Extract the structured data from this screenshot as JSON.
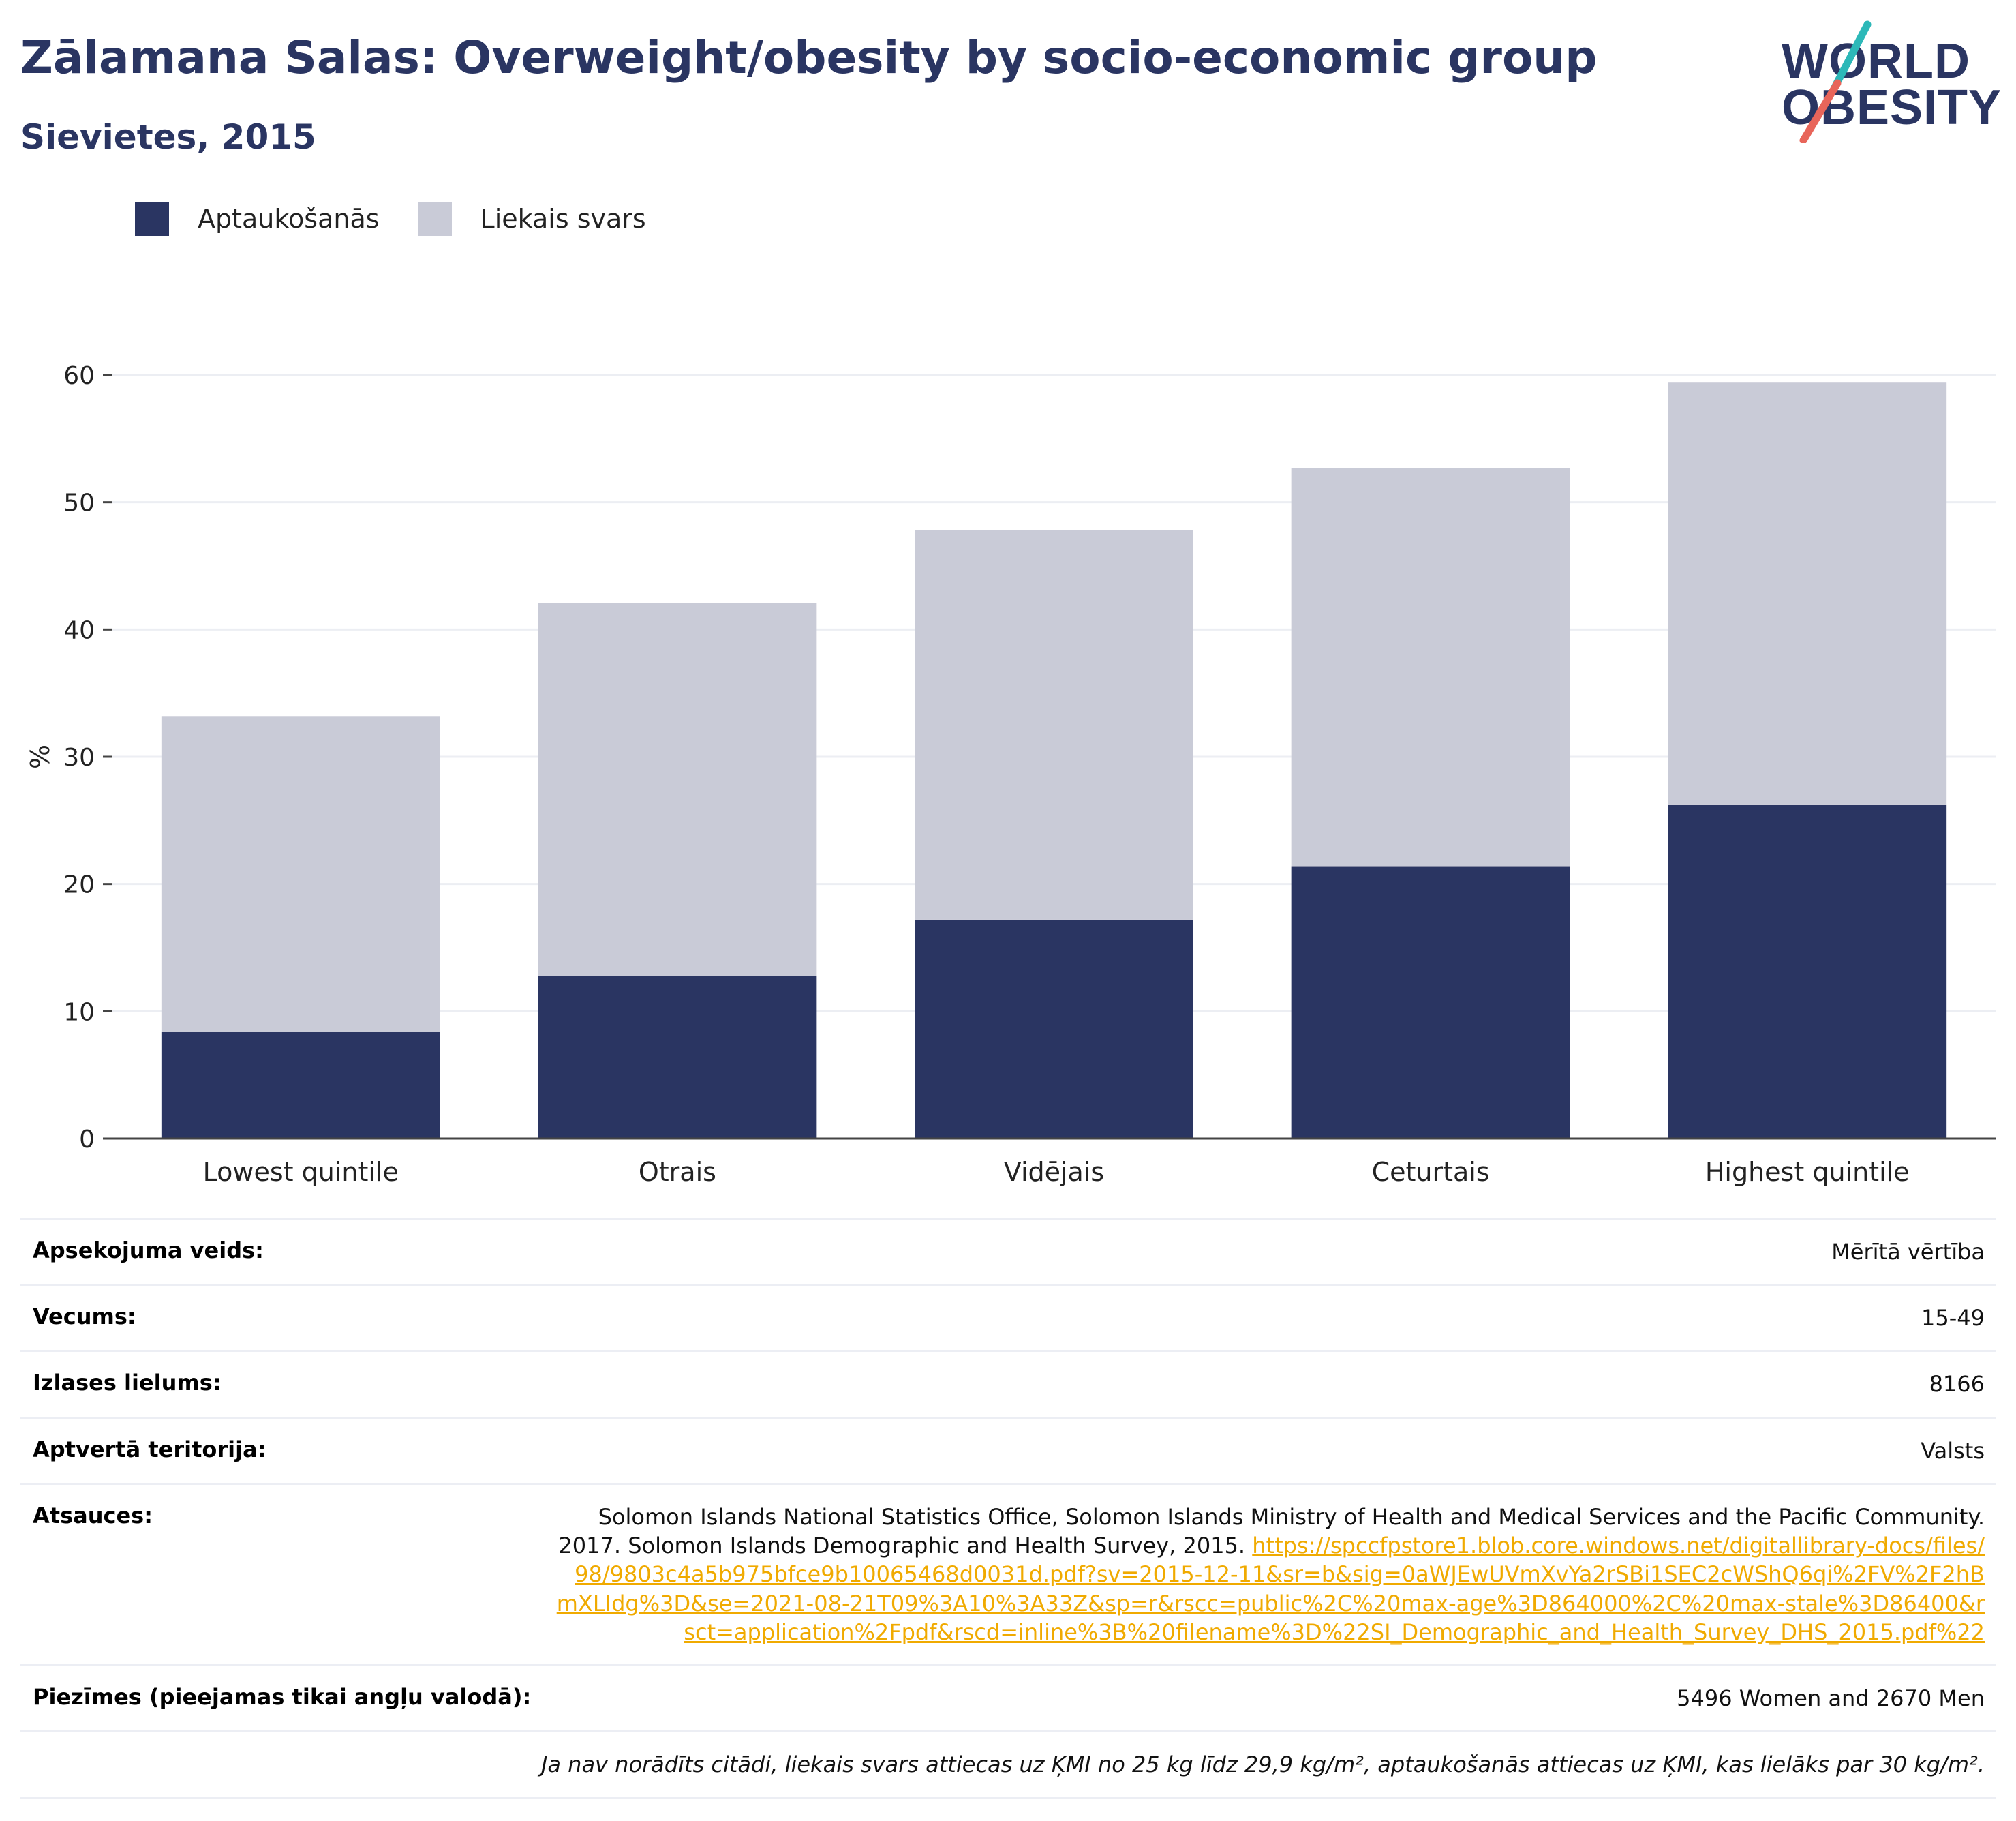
{
  "header": {
    "title": "Zālamana Salas: Overweight/obesity by socio-economic group",
    "subtitle": "Sievietes, 2015"
  },
  "logo": {
    "line1": "WORLD",
    "line2": "OBESITY"
  },
  "legend": [
    {
      "label": "Aptaukošanās",
      "color": "#2a3562"
    },
    {
      "label": "Liekais svars",
      "color": "#c9cbd7"
    }
  ],
  "chart_data": {
    "type": "bar",
    "stacked": true,
    "categories": [
      "Lowest quintile",
      "Otrais",
      "Vidējais",
      "Ceturtais",
      "Highest quintile"
    ],
    "series": [
      {
        "name": "Aptaukošanās",
        "color": "#2a3562",
        "values": [
          8.4,
          12.8,
          17.2,
          21.4,
          26.2
        ]
      },
      {
        "name": "Liekais svars",
        "color": "#c9cbd7",
        "values": [
          24.8,
          29.3,
          30.6,
          31.3,
          33.2
        ]
      }
    ],
    "ylabel": "%",
    "ylim": [
      0,
      60
    ],
    "yticks": [
      0,
      10,
      20,
      30,
      40,
      50,
      60
    ],
    "grid": true,
    "legend_position": "top-left"
  },
  "info": {
    "survey_type": {
      "label": "Apsekojuma veids:",
      "value": "Mērītā vērtība"
    },
    "age": {
      "label": "Vecums:",
      "value": "15-49"
    },
    "sample_size": {
      "label": "Izlases lielums:",
      "value": "8166"
    },
    "coverage": {
      "label": "Aptvertā teritorija:",
      "value": "Valsts"
    },
    "references": {
      "label": "Atsauces:",
      "text": "Solomon Islands National Statistics Office, Solomon Islands Ministry of Health and Medical Services and the Pacific Community. 2017. Solomon Islands Demographic and Health Survey, 2015. ",
      "link": "https://spccfpstore1.blob.core.windows.net/digitallibrary-docs/files/98/9803c4a5b975bfce9b10065468d0031d.pdf?sv=2015-12-11&sr=b&sig=0aWJEwUVmXvYa2rSBi1SEC2cWShQ6qi%2FV%2F2hBmXLIdg%3D&se=2021-08-21T09%3A10%3A33Z&sp=r&rscc=public%2C%20max-age%3D864000%2C%20max-stale%3D86400&rsct=application%2Fpdf&rscd=inline%3B%20filename%3D%22SI_Demographic_and_Health_Survey_DHS_2015.pdf%22"
    },
    "notes": {
      "label": "Piezīmes (pieejamas tikai angļu valodā):",
      "value": "5496 Women and 2670 Men"
    },
    "definition": "Ja nav norādīts citādi, liekais svars attiecas uz ĶMI no 25 kg līdz 29,9 kg/m², aptaukošanās attiecas uz ĶMI, kas lielāks par 30 kg/m²."
  }
}
